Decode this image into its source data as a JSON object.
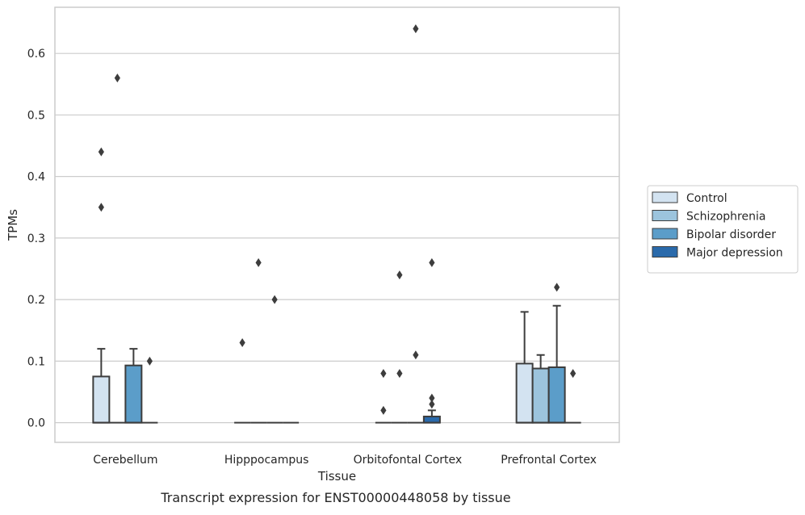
{
  "chart_data": {
    "type": "box",
    "title": "",
    "caption": "Transcript expression for ENST00000448058 by tissue",
    "xlabel": "Tissue",
    "ylabel": "TPMs",
    "ylim": [
      -0.032,
      0.675
    ],
    "yticks": [
      0.0,
      0.1,
      0.2,
      0.3,
      0.4,
      0.5,
      0.6
    ],
    "ytick_labels": [
      "0.0",
      "0.1",
      "0.2",
      "0.3",
      "0.4",
      "0.5",
      "0.6"
    ],
    "grid": "horizontal",
    "legend_position": "right",
    "categories": [
      "Cerebellum",
      "Hipppocampus",
      "Orbitofontal Cortex",
      "Prefrontal Cortex"
    ],
    "series": [
      {
        "name": "Control",
        "color": "#d3e3f1",
        "boxes": [
          {
            "q1": 0,
            "median": 0,
            "q3": 0.075,
            "whisker_low": 0,
            "whisker_high": 0.12,
            "outliers": [
              0.35,
              0.44
            ]
          },
          {
            "q1": 0,
            "median": 0,
            "q3": 0,
            "whisker_low": 0,
            "whisker_high": 0,
            "outliers": [
              0.13
            ]
          },
          {
            "q1": 0,
            "median": 0,
            "q3": 0,
            "whisker_low": 0,
            "whisker_high": 0,
            "outliers": [
              0.02,
              0.08
            ]
          },
          {
            "q1": 0,
            "median": 0,
            "q3": 0.096,
            "whisker_low": 0,
            "whisker_high": 0.18,
            "outliers": []
          }
        ]
      },
      {
        "name": "Schizophrenia",
        "color": "#9cc4dd",
        "boxes": [
          {
            "q1": 0,
            "median": 0,
            "q3": 0,
            "whisker_low": 0,
            "whisker_high": 0,
            "outliers": [
              0.56
            ]
          },
          {
            "q1": 0,
            "median": 0,
            "q3": 0,
            "whisker_low": 0,
            "whisker_high": 0,
            "outliers": [
              0.26
            ]
          },
          {
            "q1": 0,
            "median": 0,
            "q3": 0,
            "whisker_low": 0,
            "whisker_high": 0,
            "outliers": [
              0.08,
              0.24
            ]
          },
          {
            "q1": 0,
            "median": 0,
            "q3": 0.088,
            "whisker_low": 0,
            "whisker_high": 0.11,
            "outliers": []
          }
        ]
      },
      {
        "name": "Bipolar disorder",
        "color": "#5b9dc9",
        "boxes": [
          {
            "q1": 0,
            "median": 0,
            "q3": 0.093,
            "whisker_low": 0,
            "whisker_high": 0.12,
            "outliers": []
          },
          {
            "q1": 0,
            "median": 0,
            "q3": 0,
            "whisker_low": 0,
            "whisker_high": 0,
            "outliers": [
              0.2
            ]
          },
          {
            "q1": 0,
            "median": 0,
            "q3": 0,
            "whisker_low": 0,
            "whisker_high": 0,
            "outliers": [
              0.11,
              0.64
            ]
          },
          {
            "q1": 0,
            "median": 0,
            "q3": 0.09,
            "whisker_low": 0,
            "whisker_high": 0.19,
            "outliers": [
              0.22
            ]
          }
        ]
      },
      {
        "name": "Major depression",
        "color": "#2a6aab",
        "boxes": [
          {
            "q1": 0,
            "median": 0,
            "q3": 0,
            "whisker_low": 0,
            "whisker_high": 0,
            "outliers": [
              0.1
            ]
          },
          {
            "q1": 0,
            "median": 0,
            "q3": 0,
            "whisker_low": 0,
            "whisker_high": 0,
            "outliers": []
          },
          {
            "q1": 0,
            "median": 0,
            "q3": 0.01,
            "whisker_low": 0,
            "whisker_high": 0.02,
            "outliers": [
              0.03,
              0.04,
              0.26
            ]
          },
          {
            "q1": 0,
            "median": 0,
            "q3": 0,
            "whisker_low": 0,
            "whisker_high": 0,
            "outliers": [
              0.08
            ]
          }
        ]
      }
    ]
  }
}
